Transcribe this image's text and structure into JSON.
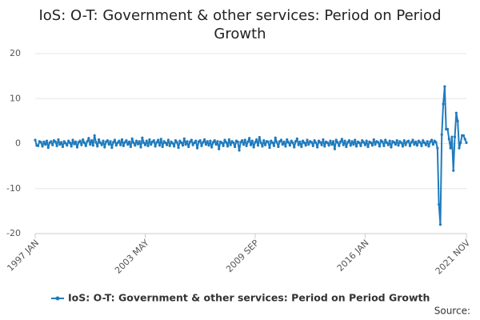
{
  "chart_data": {
    "type": "line",
    "title": "IoS: O-T: Government & other services: Period on Period Growth",
    "source": "Source:",
    "categories": [
      "1997 JAN",
      null,
      null,
      null,
      null,
      null,
      null,
      null,
      null,
      null,
      null,
      null,
      null,
      null,
      null,
      null,
      null,
      null,
      null,
      null,
      null,
      null,
      null,
      null,
      null,
      null,
      null,
      null,
      null,
      null,
      null,
      null,
      null,
      null,
      null,
      null,
      null,
      null,
      null,
      null,
      null,
      null,
      null,
      null,
      null,
      null,
      null,
      null,
      null,
      null,
      null,
      null,
      null,
      null,
      null,
      null,
      null,
      null,
      null,
      null,
      null,
      null,
      null,
      null,
      null,
      null,
      null,
      null,
      null,
      null,
      null,
      null,
      null,
      null,
      null,
      null,
      "2003 MAY",
      null,
      null,
      null,
      null,
      null,
      null,
      null,
      null,
      null,
      null,
      null,
      null,
      null,
      null,
      null,
      null,
      null,
      null,
      null,
      null,
      null,
      null,
      null,
      null,
      null,
      null,
      null,
      null,
      null,
      null,
      null,
      null,
      null,
      null,
      null,
      null,
      null,
      null,
      null,
      null,
      null,
      null,
      null,
      null,
      null,
      null,
      null,
      null,
      null,
      null,
      null,
      null,
      null,
      null,
      null,
      null,
      null,
      null,
      null,
      null,
      null,
      null,
      null,
      null,
      null,
      null,
      null,
      null,
      null,
      null,
      null,
      null,
      null,
      null,
      null,
      "2009 SEP",
      null,
      null,
      null,
      null,
      null,
      null,
      null,
      null,
      null,
      null,
      null,
      null,
      null,
      null,
      null,
      null,
      null,
      null,
      null,
      null,
      null,
      null,
      null,
      null,
      null,
      null,
      null,
      null,
      null,
      null,
      null,
      null,
      null,
      null,
      null,
      null,
      null,
      null,
      null,
      null,
      null,
      null,
      null,
      null,
      null,
      null,
      null,
      null,
      null,
      null,
      null,
      null,
      null,
      null,
      null,
      null,
      null,
      null,
      null,
      null,
      null,
      null,
      null,
      null,
      null,
      null,
      null,
      null,
      null,
      null,
      null,
      null,
      null,
      null,
      null,
      "2016 JAN",
      null,
      null,
      null,
      null,
      null,
      null,
      null,
      null,
      null,
      null,
      null,
      null,
      null,
      null,
      null,
      null,
      null,
      null,
      null,
      null,
      null,
      null,
      null,
      null,
      null,
      null,
      null,
      null,
      null,
      null,
      null,
      null,
      null,
      null,
      null,
      null,
      null,
      null,
      null,
      null,
      null,
      null,
      null,
      null,
      null,
      null,
      null,
      null,
      null,
      null,
      null,
      null,
      null,
      null,
      null,
      null,
      null,
      null,
      null,
      null,
      null,
      null,
      null,
      null,
      null,
      null,
      null,
      null,
      null,
      "2021 NOV"
    ],
    "series": [
      {
        "name": "IoS: O-T: Government & other services: Period on Period Growth",
        "color": "#1f7bbd",
        "values": [
          0.8,
          -0.4,
          -0.5,
          0.5,
          0.3,
          -0.6,
          0.4,
          -0.2,
          0.6,
          -0.9,
          0.2,
          0.5,
          -0.3,
          0.7,
          0.4,
          -0.5,
          0.9,
          -0.2,
          0.3,
          -0.7,
          0.5,
          0.1,
          -0.4,
          0.6,
          0.2,
          -0.6,
          0.8,
          -0.1,
          0.4,
          -0.8,
          0.3,
          0.6,
          -0.3,
          0.9,
          0.2,
          -0.5,
          0.5,
          1.2,
          -0.2,
          0.7,
          -0.4,
          1.8,
          0.3,
          -0.6,
          0.9,
          0.2,
          -0.3,
          0.6,
          -0.8,
          0.4,
          0.7,
          -0.2,
          0.5,
          -0.9,
          0.3,
          0.8,
          -0.4,
          0.2,
          0.6,
          -0.3,
          0.9,
          -0.5,
          0.3,
          0.7,
          -0.2,
          0.4,
          -0.7,
          1.1,
          0.2,
          -0.4,
          0.6,
          -0.1,
          0.5,
          -0.8,
          1.3,
          0.2,
          -0.3,
          0.6,
          -0.5,
          0.9,
          -0.2,
          0.4,
          0.7,
          -0.6,
          0.3,
          0.8,
          -0.4,
          1.0,
          -0.7,
          0.5,
          0.2,
          -0.3,
          0.8,
          -0.5,
          0.4,
          0.1,
          -0.6,
          0.7,
          0.3,
          -0.9,
          0.6,
          0.2,
          -0.4,
          1.1,
          -0.2,
          0.5,
          -0.7,
          0.4,
          0.8,
          -0.3,
          0.2,
          0.6,
          -1.0,
          0.4,
          0.7,
          -0.5,
          0.3,
          0.9,
          -0.2,
          0.5,
          -0.4,
          0.6,
          -0.8,
          0.3,
          0.7,
          -0.2,
          0.5,
          -1.2,
          0.4,
          0.2,
          -0.5,
          0.8,
          0.3,
          -0.6,
          0.9,
          -0.3,
          0.5,
          0.2,
          -0.7,
          0.6,
          0.4,
          -1.5,
          0.3,
          0.7,
          -0.2,
          0.8,
          -0.5,
          0.4,
          1.2,
          -0.3,
          0.6,
          -0.8,
          0.3,
          0.9,
          -0.4,
          1.4,
          0.2,
          -0.6,
          0.7,
          -0.3,
          0.5,
          0.4,
          -0.9,
          0.6,
          0.2,
          -0.5,
          1.3,
          0.3,
          -0.7,
          0.5,
          0.8,
          -0.2,
          0.4,
          -0.6,
          0.9,
          0.3,
          -0.4,
          0.6,
          0.2,
          -0.8,
          0.5,
          1.1,
          -0.3,
          0.4,
          -0.7,
          0.6,
          0.2,
          -0.4,
          0.8,
          -0.2,
          0.5,
          0.3,
          -0.5,
          0.7,
          0.2,
          -0.8,
          0.6,
          0.3,
          -0.3,
          0.9,
          -0.6,
          0.4,
          0.2,
          -0.4,
          0.6,
          -0.2,
          0.5,
          -1.2,
          0.8,
          0.3,
          -0.5,
          0.4,
          1.0,
          -0.3,
          0.6,
          -0.7,
          0.3,
          0.7,
          -0.4,
          0.5,
          -0.2,
          0.8,
          -0.6,
          0.4,
          0.2,
          -0.5,
          0.7,
          0.3,
          -0.3,
          0.6,
          -0.7,
          0.4,
          0.2,
          -0.4,
          0.9,
          -0.2,
          0.5,
          0.3,
          -0.6,
          0.7,
          0.4,
          -0.5,
          0.8,
          0.2,
          -0.3,
          0.6,
          -0.8,
          0.5,
          0.3,
          -0.2,
          0.7,
          -0.4,
          0.5,
          0.2,
          -0.6,
          0.7,
          -0.3,
          0.4,
          0.6,
          -0.5,
          0.3,
          0.8,
          -0.2,
          0.4,
          -0.4,
          0.6,
          0.3,
          -0.5,
          0.7,
          0.2,
          -0.3,
          0.5,
          -0.6,
          0.4,
          0.8,
          -0.2,
          0.6,
          0.3,
          -1.0,
          -13.5,
          -18.0,
          2.0,
          8.8,
          12.7,
          3.2,
          3.2,
          1.0,
          -1.0,
          1.5,
          -6.0,
          1.5,
          6.8,
          5.0,
          -1.0,
          0.2,
          1.8,
          1.8,
          1.0,
          0.2
        ]
      }
    ],
    "ylim": [
      -20,
      20
    ],
    "yticks": [
      -20,
      -10,
      0,
      10,
      20
    ],
    "grid": true,
    "legend": "bottom"
  }
}
